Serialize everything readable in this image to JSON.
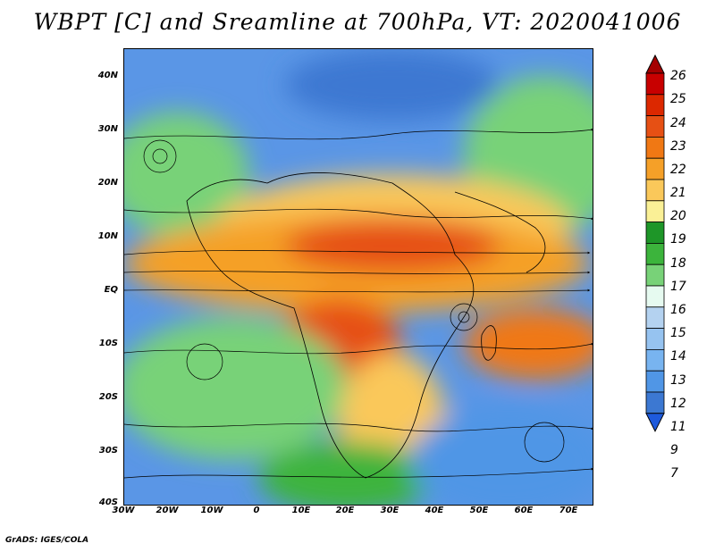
{
  "title": "WBPT [C] and Sreamline at 700hPa, VT: 2020041006",
  "credit": "GrADS: IGES/COLA",
  "lat_labels": [
    "40N",
    "30N",
    "20N",
    "10N",
    "EQ",
    "10S",
    "20S",
    "30S",
    "40S"
  ],
  "lon_labels": [
    "30W",
    "20W",
    "10W",
    "0",
    "10E",
    "20E",
    "30E",
    "40E",
    "50E",
    "60E",
    "70E"
  ],
  "colorbar": {
    "labels": [
      "26",
      "25",
      "24",
      "23",
      "22",
      "21",
      "20",
      "19",
      "18",
      "17",
      "16",
      "15",
      "14",
      "13",
      "12",
      "11",
      "9",
      "7"
    ],
    "colors": [
      "#a50000",
      "#c80000",
      "#dc2800",
      "#e65014",
      "#f07814",
      "#f5a028",
      "#fac85a",
      "#faf096",
      "#1e9628",
      "#3cb43c",
      "#78d278",
      "#e6faf0",
      "#b4d2f0",
      "#96c3f0",
      "#78b4f0",
      "#5096e6",
      "#3c78d2",
      "#1e5adc"
    ]
  }
}
